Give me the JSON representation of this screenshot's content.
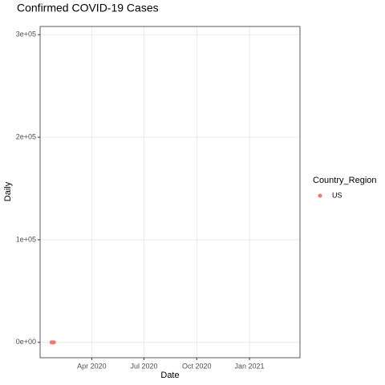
{
  "chart_data": {
    "type": "scatter",
    "title": "Confirmed COVID-19 Cases",
    "xlabel": "Date",
    "ylabel": "Daily",
    "series": [
      {
        "name": "US",
        "color": "#F8766D",
        "x": [
          "2020-01-22",
          "2020-01-23",
          "2020-01-24",
          "2020-01-25",
          "2020-01-26"
        ],
        "values": [
          1,
          0,
          1,
          0,
          3
        ]
      }
    ],
    "legend_title": "Country_Region",
    "legend": "right",
    "xlim": [
      "2020-01-02",
      "2021-03-30"
    ],
    "xticks": [
      {
        "value": "2020-04-01",
        "label": "Apr 2020"
      },
      {
        "value": "2020-07-01",
        "label": "Jul 2020"
      },
      {
        "value": "2020-10-01",
        "label": "Oct 2020"
      },
      {
        "value": "2021-01-01",
        "label": "Jan 2021"
      }
    ],
    "ylim": [
      -15000,
      308000
    ],
    "yticks": [
      {
        "value": 0,
        "label": "0e+00"
      },
      {
        "value": 100000,
        "label": "1e+05"
      },
      {
        "value": 200000,
        "label": "2e+05"
      },
      {
        "value": 300000,
        "label": "3e+05"
      }
    ],
    "grid": true
  }
}
